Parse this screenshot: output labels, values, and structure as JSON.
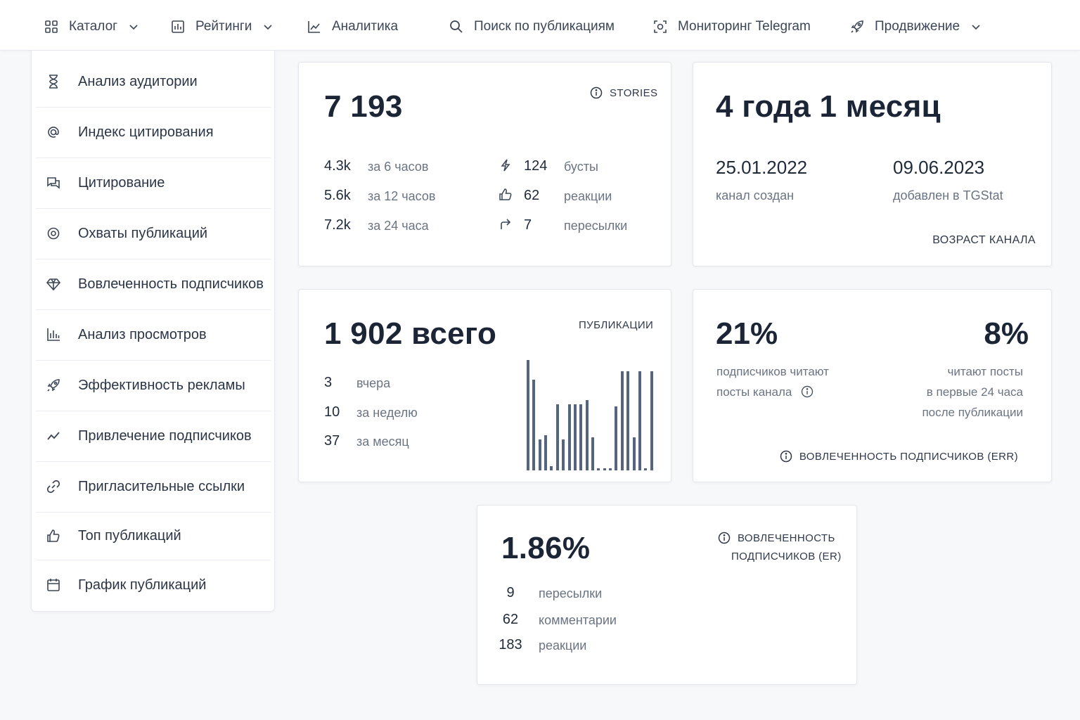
{
  "nav": {
    "items": [
      {
        "label": "Каталог",
        "icon": "grid-icon",
        "dropdown": true
      },
      {
        "label": "Рейтинги",
        "icon": "rating-icon",
        "dropdown": true
      },
      {
        "label": "Аналитика",
        "icon": "line-chart-icon",
        "dropdown": false
      },
      {
        "label": "Поиск по публикациям",
        "icon": "search-icon",
        "dropdown": false
      },
      {
        "label": "Мониторинг Telegram",
        "icon": "monitor-icon",
        "dropdown": false
      },
      {
        "label": "Продвижение",
        "icon": "rocket-icon",
        "dropdown": true
      }
    ]
  },
  "sidebar": {
    "items": [
      {
        "label": "Анализ аудитории",
        "icon": "hourglass-icon"
      },
      {
        "label": "Индекс цитирования",
        "icon": "at-icon"
      },
      {
        "label": "Цитирование",
        "icon": "chat-icon"
      },
      {
        "label": "Охваты публикаций",
        "icon": "eye-icon"
      },
      {
        "label": "Вовлеченность подписчиков",
        "icon": "diamond-icon"
      },
      {
        "label": "Анализ просмотров",
        "icon": "bar-chart-icon"
      },
      {
        "label": "Эффективность рекламы",
        "icon": "rocket-icon"
      },
      {
        "label": "Привлечение подписчиков",
        "icon": "trend-icon"
      },
      {
        "label": "Пригласительные ссылки",
        "icon": "link-icon"
      },
      {
        "label": "Топ публикаций",
        "icon": "thumbs-up-icon"
      },
      {
        "label": "График публикаций",
        "icon": "calendar-icon"
      }
    ]
  },
  "stories": {
    "total": "7 193",
    "tag": "STORIES",
    "rows": [
      {
        "value": "4.3k",
        "label": "за 6 часов"
      },
      {
        "value": "5.6k",
        "label": "за 12 часов"
      },
      {
        "value": "7.2k",
        "label": "за 24 часа"
      }
    ],
    "stats": [
      {
        "value": "124",
        "label": "бусты",
        "icon": "bolt-icon"
      },
      {
        "value": "62",
        "label": "реакции",
        "icon": "thumbs-up-icon"
      },
      {
        "value": "7",
        "label": "пересылки",
        "icon": "forward-icon"
      }
    ]
  },
  "age": {
    "title": "4 года 1 месяц",
    "created_date": "25.01.2022",
    "created_label": "канал создан",
    "added_date": "09.06.2023",
    "added_label": "добавлен в TGStat",
    "tag": "ВОЗРАСТ КАНАЛА"
  },
  "publications": {
    "total": "1 902 всего",
    "tag": "ПУБЛИКАЦИИ",
    "rows": [
      {
        "value": "3",
        "label": "вчера"
      },
      {
        "value": "10",
        "label": "за неделю"
      },
      {
        "value": "37",
        "label": "за месяц"
      }
    ],
    "bar_color": "#56657f",
    "bars": [
      1.0,
      0.82,
      0.28,
      0.32,
      0.04,
      0.6,
      0.28,
      0.6,
      0.6,
      0.6,
      0.64,
      0.3,
      0.02,
      0.02,
      0.02,
      0.58,
      0.9,
      0.9,
      0.3,
      0.9,
      0.02,
      0.9
    ]
  },
  "err": {
    "left_pct": "21%",
    "left_line1": "подписчиков читают",
    "left_line2": "посты канала",
    "right_pct": "8%",
    "right_line1": "читают посты",
    "right_line2": "в первые 24 часа",
    "right_line3": "после публикации",
    "tag": "ВОВЛЕЧЕННОСТЬ ПОДПИСЧИКОВ (ERR)"
  },
  "er": {
    "value": "1.86%",
    "tag_line1": "ВОВЛЕЧЕННОСТЬ",
    "tag_line2": "ПОДПИСЧИКОВ (ER)",
    "rows": [
      {
        "value": "9",
        "label": "пересылки"
      },
      {
        "value": "62",
        "label": "комментарии"
      },
      {
        "value": "183",
        "label": "реакции"
      }
    ]
  },
  "colors": {
    "accent_dark": "#1c2536",
    "muted": "#6b7482",
    "bar": "#56657f"
  }
}
